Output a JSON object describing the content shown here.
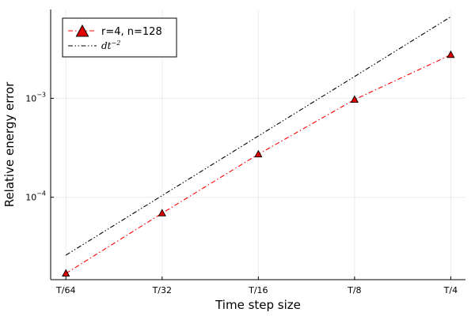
{
  "chart_data": {
    "type": "line",
    "xscale": "log2",
    "yscale": "log10",
    "categories": [
      "T/64",
      "T/32",
      "T/16",
      "T/8",
      "T/4"
    ],
    "x": [
      0.015625,
      0.03125,
      0.0625,
      0.125,
      0.25
    ],
    "series": [
      {
        "name": "r=4, n=128",
        "values": [
          1.7e-05,
          6.9e-05,
          0.000272,
          0.00097,
          0.00275
        ],
        "color": "#ff0000",
        "marker": "triangle",
        "marker_color": "#e00000",
        "line_style": "dash-dot"
      },
      {
        "name_math": {
          "base": "dt",
          "exp": "−2"
        },
        "values": [
          2.6e-05,
          0.000104,
          0.000416,
          0.00166,
          0.00666
        ],
        "color": "#000000",
        "marker": "none",
        "line_style": "dash-dot-dot"
      }
    ],
    "xlabel": "Time step size",
    "ylabel": "Relative energy error",
    "xlim": [
      0.014,
      0.278
    ],
    "ylim": [
      1.47e-05,
      0.0079
    ],
    "yticks": [
      {
        "value": 0.0001,
        "base": "10",
        "exp": "−4"
      },
      {
        "value": 0.001,
        "base": "10",
        "exp": "−3"
      }
    ],
    "grid": true,
    "legend_position": "top-left"
  }
}
